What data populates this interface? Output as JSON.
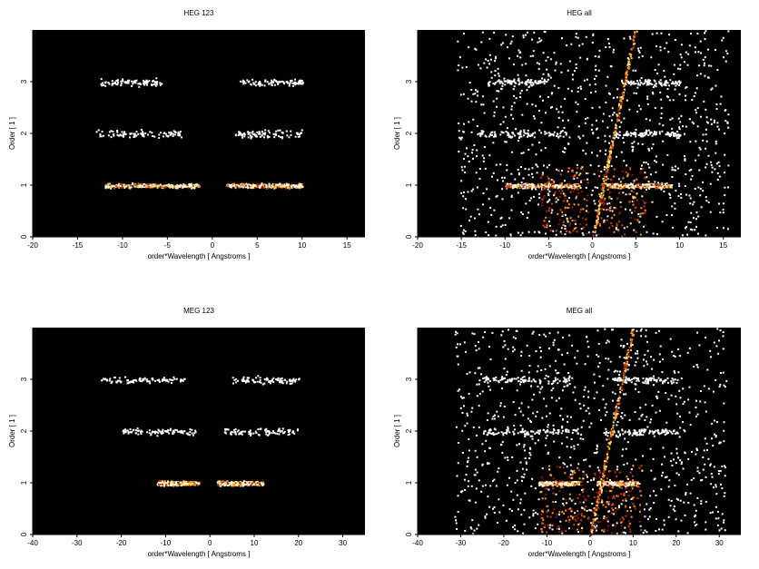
{
  "figure": {
    "background": "#ffffff",
    "plot_background": "#000000",
    "scatter_colors": [
      "#ffffff",
      "#ffffff",
      "#ffffff",
      "#ffef9a",
      "#ffd84a",
      "#ff9a1a",
      "#c8420a",
      "#8a1a00"
    ]
  },
  "chart_data": [
    {
      "type": "scatter",
      "title": "HEG 123",
      "xlabel": "order*Wavelength [ Angstroms ]",
      "ylabel": "Order [ 1 ]",
      "xlim": [
        -20,
        17
      ],
      "ylim": [
        0,
        4
      ],
      "xticks": [
        -20,
        -15,
        -10,
        -5,
        0,
        5,
        10,
        15
      ],
      "yticks": [
        0,
        1,
        2,
        3
      ],
      "grid": false,
      "clusters": [
        {
          "order": 1,
          "x_range": [
            -12,
            -1.5
          ],
          "intensity": "high"
        },
        {
          "order": 1,
          "x_range": [
            1.5,
            10
          ],
          "intensity": "high"
        },
        {
          "order": 2,
          "x_range": [
            -13,
            -3.5
          ],
          "intensity": "low"
        },
        {
          "order": 2,
          "x_range": [
            2.5,
            10
          ],
          "intensity": "low"
        },
        {
          "order": 3,
          "x_range": [
            -12.5,
            -5.5
          ],
          "intensity": "low"
        },
        {
          "order": 3,
          "x_range": [
            3,
            10
          ],
          "intensity": "low"
        }
      ]
    },
    {
      "type": "scatter",
      "title": "HEG all",
      "xlabel": "order*Wavelength [ Angstroms ]",
      "ylabel": "Order [ 1 ]",
      "xlim": [
        -20,
        17
      ],
      "ylim": [
        0,
        4
      ],
      "xticks": [
        -20,
        -15,
        -10,
        -5,
        0,
        5,
        10,
        15
      ],
      "yticks": [
        0,
        1,
        2,
        3
      ],
      "grid": false,
      "clusters": [
        {
          "order": 1,
          "x_range": [
            -10,
            -1.5
          ],
          "intensity": "high"
        },
        {
          "order": 1,
          "x_range": [
            1.5,
            9
          ],
          "intensity": "high"
        },
        {
          "order": 2,
          "x_range": [
            -13,
            -3
          ],
          "intensity": "low"
        },
        {
          "order": 2,
          "x_range": [
            2.5,
            10
          ],
          "intensity": "low"
        },
        {
          "order": 3,
          "x_range": [
            -12,
            -5
          ],
          "intensity": "low"
        },
        {
          "order": 3,
          "x_range": [
            3,
            10
          ],
          "intensity": "low"
        }
      ],
      "background_scatter": "dense"
    },
    {
      "type": "scatter",
      "title": "MEG 123",
      "xlabel": "order*Wavelength [ Angstroms ]",
      "ylabel": "Order [ 1 ]",
      "xlim": [
        -40,
        35
      ],
      "ylim": [
        0,
        4
      ],
      "xticks": [
        -40,
        -30,
        -20,
        -10,
        0,
        10,
        20,
        30
      ],
      "yticks": [
        0,
        1,
        2,
        3
      ],
      "grid": false,
      "clusters": [
        {
          "order": 1,
          "x_range": [
            -12,
            -2.5
          ],
          "intensity": "high"
        },
        {
          "order": 1,
          "x_range": [
            1.5,
            12
          ],
          "intensity": "high"
        },
        {
          "order": 2,
          "x_range": [
            -20,
            -3
          ],
          "intensity": "low"
        },
        {
          "order": 2,
          "x_range": [
            3,
            20
          ],
          "intensity": "low"
        },
        {
          "order": 3,
          "x_range": [
            -25,
            -5.5
          ],
          "intensity": "low"
        },
        {
          "order": 3,
          "x_range": [
            5,
            20
          ],
          "intensity": "low"
        }
      ]
    },
    {
      "type": "scatter",
      "title": "MEG all",
      "xlabel": "order*Wavelength [ Angstroms ]",
      "ylabel": "Order [ 1 ]",
      "xlim": [
        -40,
        35
      ],
      "ylim": [
        0,
        4
      ],
      "xticks": [
        -40,
        -30,
        -20,
        -10,
        0,
        10,
        20,
        30
      ],
      "yticks": [
        0,
        1,
        2,
        3
      ],
      "grid": false,
      "clusters": [
        {
          "order": 1,
          "x_range": [
            -12,
            -2.5
          ],
          "intensity": "high"
        },
        {
          "order": 1,
          "x_range": [
            1.5,
            11
          ],
          "intensity": "high"
        },
        {
          "order": 2,
          "x_range": [
            -25,
            -3
          ],
          "intensity": "low"
        },
        {
          "order": 2,
          "x_range": [
            3,
            20
          ],
          "intensity": "low"
        },
        {
          "order": 3,
          "x_range": [
            -25,
            -5
          ],
          "intensity": "low"
        },
        {
          "order": 3,
          "x_range": [
            5,
            20
          ],
          "intensity": "low"
        }
      ],
      "background_scatter": "dense"
    }
  ]
}
